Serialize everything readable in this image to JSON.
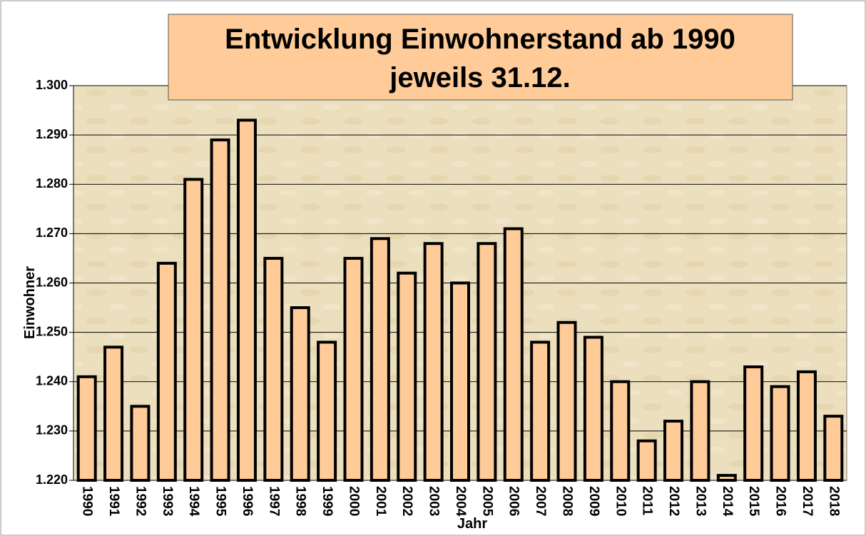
{
  "chart_data": {
    "type": "bar",
    "title": [
      "Entwicklung Einwohnerstand ab 1990",
      "jeweils 31.12."
    ],
    "x_label": "Jahr",
    "y_label": "Einwohner",
    "categories": [
      "1990",
      "1991",
      "1992",
      "1993",
      "1994",
      "1995",
      "1996",
      "1997",
      "1998",
      "1999",
      "2000",
      "2001",
      "2002",
      "2003",
      "2004",
      "2005",
      "2006",
      "2007",
      "2008",
      "2009",
      "2010",
      "2011",
      "2012",
      "2013",
      "2014",
      "2015",
      "2016",
      "2017",
      "2018"
    ],
    "values": [
      1241,
      1247,
      1235,
      1264,
      1281,
      1289,
      1293,
      1265,
      1255,
      1248,
      1265,
      1269,
      1262,
      1268,
      1260,
      1268,
      1271,
      1248,
      1252,
      1249,
      1240,
      1228,
      1232,
      1240,
      1221,
      1243,
      1239,
      1242,
      1233
    ],
    "color": "#ffcc99",
    "ylim": [
      1220,
      1300
    ],
    "yticks": [
      {
        "value": 1220,
        "label": "1.220"
      },
      {
        "value": 1230,
        "label": "1.230"
      },
      {
        "value": 1240,
        "label": "1.240"
      },
      {
        "value": 1250,
        "label": "1.250"
      },
      {
        "value": 1260,
        "label": "1.260"
      },
      {
        "value": 1270,
        "label": "1.270"
      },
      {
        "value": 1280,
        "label": "1.280"
      },
      {
        "value": 1290,
        "label": "1.290"
      },
      {
        "value": 1300,
        "label": "1.300"
      }
    ],
    "grid": true
  }
}
